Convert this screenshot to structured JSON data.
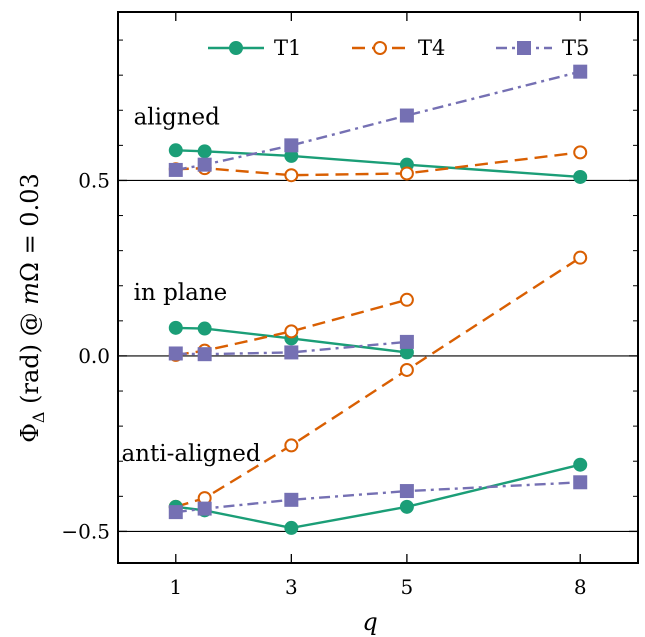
{
  "chart_data": {
    "type": "line",
    "xlabel": "q",
    "ylabel": "Φ_Δ (rad) @ mΩ = 0.03",
    "ylabel_parts": {
      "phi": "Φ",
      "delta": "Δ",
      "rest": " (rad) @ ",
      "m": "m",
      "omega": "Ω",
      "eq": " = 0.03"
    },
    "xlim": [
      0,
      9
    ],
    "ylim": [
      -0.59,
      0.98
    ],
    "xticks": [
      1,
      3,
      5,
      8
    ],
    "xtick_labels": [
      "1",
      "3",
      "5",
      "8"
    ],
    "yticks": [
      -0.5,
      0.0,
      0.5
    ],
    "ytick_labels": [
      "−0.5",
      "0.0",
      "0.5"
    ],
    "reference_lines": [
      -0.5,
      0.0,
      0.5
    ],
    "annotations": [
      {
        "text": "aligned",
        "x": 0.27,
        "y": 0.66
      },
      {
        "text": "in plane",
        "x": 0.27,
        "y": 0.16
      },
      {
        "text": "anti-aligned",
        "x": 0.06,
        "y": -0.3
      }
    ],
    "legend": {
      "placement": "top-center"
    },
    "groups": [
      {
        "name": "aligned",
        "series": [
          {
            "name": "T1",
            "color": "#1b9e77",
            "marker": "circle-filled",
            "line": "solid",
            "x": [
              1,
              1.5,
              3,
              5,
              8
            ],
            "y": [
              0.586,
              0.583,
              0.57,
              0.545,
              0.51
            ]
          },
          {
            "name": "T4",
            "color": "#d95f02",
            "marker": "circle-open",
            "line": "dashed",
            "x": [
              1,
              1.5,
              3,
              5,
              8
            ],
            "y": [
              0.532,
              0.535,
              0.515,
              0.52,
              0.58
            ]
          },
          {
            "name": "T5",
            "color": "#7570b3",
            "marker": "square",
            "line": "dashdot",
            "x": [
              1,
              1.5,
              3,
              5,
              8
            ],
            "y": [
              0.53,
              0.545,
              0.6,
              0.685,
              0.81
            ]
          }
        ]
      },
      {
        "name": "in plane",
        "series": [
          {
            "name": "T1",
            "color": "#1b9e77",
            "marker": "circle-filled",
            "line": "solid",
            "x": [
              1,
              1.5,
              3,
              5
            ],
            "y": [
              0.08,
              0.078,
              0.05,
              0.01
            ]
          },
          {
            "name": "T4",
            "color": "#d95f02",
            "marker": "circle-open",
            "line": "dashed",
            "x": [
              1,
              1.5,
              3,
              5
            ],
            "y": [
              0.003,
              0.015,
              0.07,
              0.16
            ]
          },
          {
            "name": "T4",
            "color": "#d95f02",
            "marker": "circle-open",
            "line": "dashed",
            "x": [
              1,
              1.5,
              3,
              5,
              8
            ],
            "y": [
              -0.43,
              -0.405,
              -0.255,
              -0.04,
              0.28
            ]
          },
          {
            "name": "T5",
            "color": "#7570b3",
            "marker": "square",
            "line": "dashdot",
            "x": [
              1,
              1.5,
              3,
              5
            ],
            "y": [
              0.007,
              0.005,
              0.01,
              0.04
            ]
          }
        ]
      },
      {
        "name": "anti-aligned",
        "series": [
          {
            "name": "T1",
            "color": "#1b9e77",
            "marker": "circle-filled",
            "line": "solid",
            "x": [
              1,
              1.5,
              3,
              5,
              8
            ],
            "y": [
              -0.43,
              -0.44,
              -0.49,
              -0.43,
              -0.31
            ]
          },
          {
            "name": "T5",
            "color": "#7570b3",
            "marker": "square",
            "line": "dashdot",
            "x": [
              1,
              1.5,
              3,
              5,
              8
            ],
            "y": [
              -0.445,
              -0.435,
              -0.41,
              -0.385,
              -0.36
            ]
          }
        ]
      }
    ]
  }
}
